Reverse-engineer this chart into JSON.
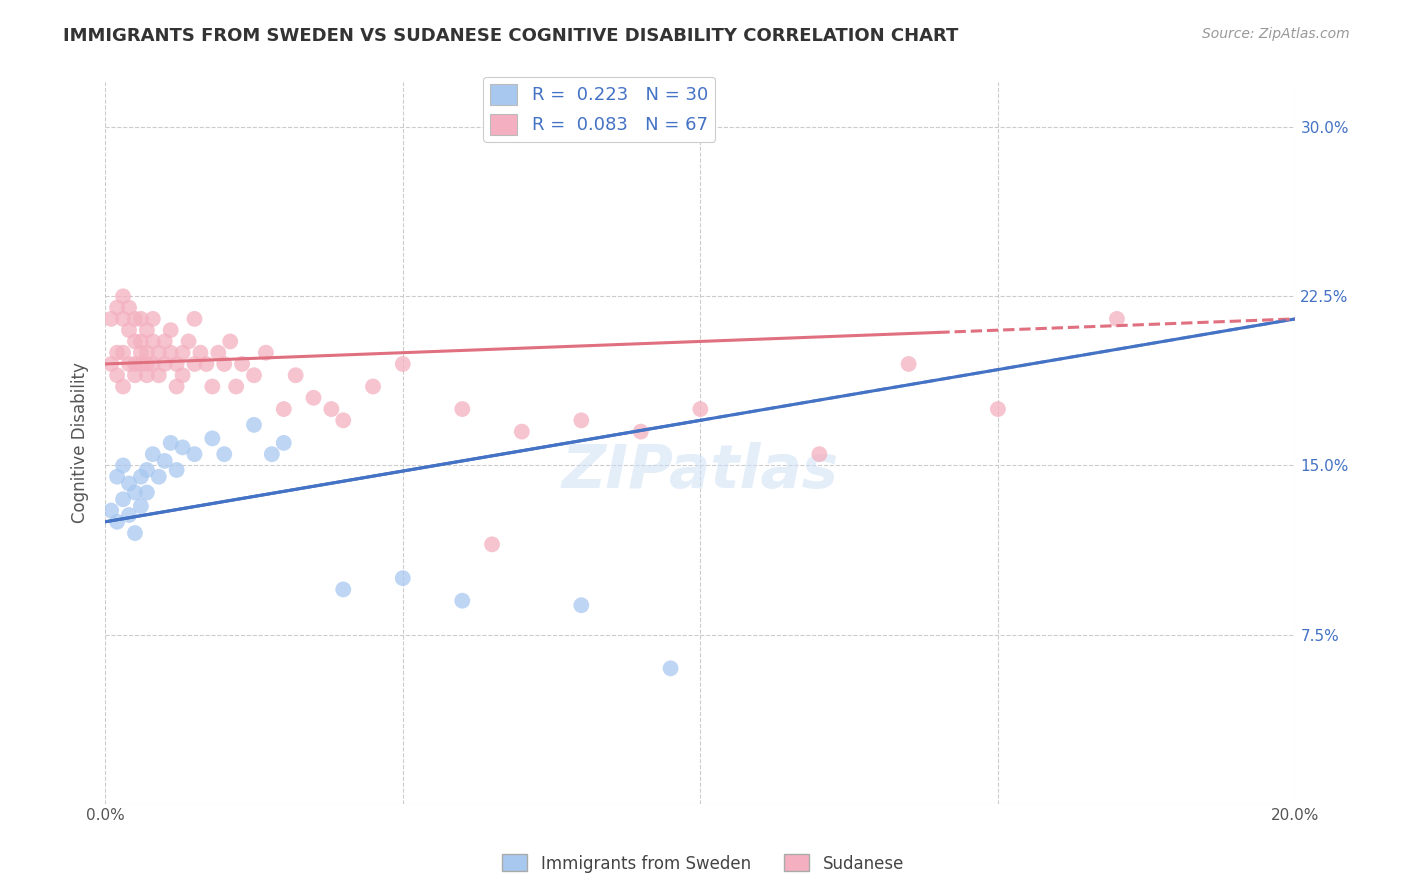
{
  "title": "IMMIGRANTS FROM SWEDEN VS SUDANESE COGNITIVE DISABILITY CORRELATION CHART",
  "source": "Source: ZipAtlas.com",
  "xlabel": "",
  "ylabel": "Cognitive Disability",
  "xlim": [
    0.0,
    0.2
  ],
  "ylim": [
    0.0,
    0.32
  ],
  "x_ticks": [
    0.0,
    0.05,
    0.1,
    0.15,
    0.2
  ],
  "x_tick_labels": [
    "0.0%",
    "",
    "",
    "",
    "20.0%"
  ],
  "y_ticks": [
    0.0,
    0.075,
    0.15,
    0.225,
    0.3
  ],
  "y_tick_labels": [
    "",
    "7.5%",
    "15.0%",
    "22.5%",
    "30.0%"
  ],
  "sweden_R": 0.223,
  "sweden_N": 30,
  "sudanese_R": 0.083,
  "sudanese_N": 67,
  "sweden_color": "#a8c8f0",
  "sudanese_color": "#f4b0c0",
  "sweden_line_color": "#4472c4",
  "sudanese_line_color": "#e07080",
  "legend_text_color": "#4472c4",
  "title_color": "#333333",
  "background_color": "#ffffff",
  "grid_color": "#cccccc",
  "sweden_line_x0": 0.0,
  "sweden_line_y0": 0.125,
  "sweden_line_x1": 0.2,
  "sweden_line_y1": 0.215,
  "sudanese_line_x0": 0.0,
  "sudanese_line_y0": 0.195,
  "sudanese_line_x1": 0.2,
  "sudanese_line_y1": 0.215,
  "sweden_scatter_x": [
    0.001,
    0.002,
    0.002,
    0.003,
    0.003,
    0.004,
    0.004,
    0.005,
    0.005,
    0.006,
    0.006,
    0.007,
    0.007,
    0.008,
    0.009,
    0.01,
    0.011,
    0.012,
    0.013,
    0.015,
    0.018,
    0.02,
    0.025,
    0.028,
    0.03,
    0.04,
    0.05,
    0.06,
    0.08,
    0.095
  ],
  "sweden_scatter_y": [
    0.13,
    0.145,
    0.125,
    0.135,
    0.15,
    0.128,
    0.142,
    0.138,
    0.12,
    0.145,
    0.132,
    0.148,
    0.138,
    0.155,
    0.145,
    0.152,
    0.16,
    0.148,
    0.158,
    0.155,
    0.162,
    0.155,
    0.168,
    0.155,
    0.16,
    0.095,
    0.1,
    0.09,
    0.088,
    0.06
  ],
  "sudanese_scatter_x": [
    0.001,
    0.001,
    0.002,
    0.002,
    0.002,
    0.003,
    0.003,
    0.003,
    0.003,
    0.004,
    0.004,
    0.004,
    0.005,
    0.005,
    0.005,
    0.005,
    0.006,
    0.006,
    0.006,
    0.006,
    0.007,
    0.007,
    0.007,
    0.007,
    0.008,
    0.008,
    0.008,
    0.009,
    0.009,
    0.01,
    0.01,
    0.011,
    0.011,
    0.012,
    0.012,
    0.013,
    0.013,
    0.014,
    0.015,
    0.015,
    0.016,
    0.017,
    0.018,
    0.019,
    0.02,
    0.021,
    0.022,
    0.023,
    0.025,
    0.027,
    0.03,
    0.032,
    0.035,
    0.038,
    0.04,
    0.045,
    0.05,
    0.06,
    0.065,
    0.07,
    0.08,
    0.09,
    0.1,
    0.12,
    0.135,
    0.15,
    0.17
  ],
  "sudanese_scatter_y": [
    0.195,
    0.215,
    0.2,
    0.19,
    0.22,
    0.185,
    0.2,
    0.215,
    0.225,
    0.195,
    0.21,
    0.22,
    0.195,
    0.205,
    0.215,
    0.19,
    0.2,
    0.195,
    0.205,
    0.215,
    0.195,
    0.21,
    0.2,
    0.19,
    0.205,
    0.195,
    0.215,
    0.2,
    0.19,
    0.205,
    0.195,
    0.2,
    0.21,
    0.195,
    0.185,
    0.2,
    0.19,
    0.205,
    0.195,
    0.215,
    0.2,
    0.195,
    0.185,
    0.2,
    0.195,
    0.205,
    0.185,
    0.195,
    0.19,
    0.2,
    0.175,
    0.19,
    0.18,
    0.175,
    0.17,
    0.185,
    0.195,
    0.175,
    0.115,
    0.165,
    0.17,
    0.165,
    0.175,
    0.155,
    0.195,
    0.175,
    0.215
  ]
}
